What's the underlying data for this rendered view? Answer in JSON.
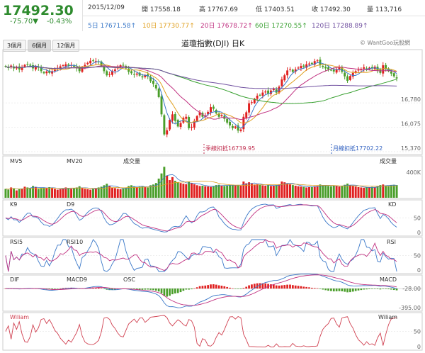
{
  "header": {
    "price": "17492.30",
    "change": "-75.70▼",
    "change_pct": "-0.43%",
    "date": "2015/12/09",
    "open": "開 17558.18",
    "high": "高 17767.69",
    "low": "低 17403.51",
    "close": "收 17492.30",
    "volume": "量 113,716"
  },
  "ma": {
    "ma5": "5日 17671.58↑",
    "ma10": "10日 17730.77↑",
    "ma20": "20日 17678.72↑",
    "ma60": "60日 17270.55↑",
    "ma120": "120日 17288.89↑"
  },
  "tabs": [
    "3個月",
    "6個月",
    "12個月"
  ],
  "title": "道瓊指數(DJI) 日K",
  "brand": "© WantGoo玩股網",
  "colors": {
    "up": "#e02020",
    "down": "#4a9e2a",
    "ma5": "#3a78c8",
    "ma10": "#e0a020",
    "ma20": "#c03080",
    "ma60": "#38a030",
    "ma120": "#7050a0"
  },
  "annotations": {
    "season": "季線扣抵16739.95",
    "month": "月線扣抵17702.22"
  },
  "panels": {
    "vol": {
      "l1": "MV5",
      "l2": "MV20",
      "l3": "成交量",
      "r": "成交量",
      "tick": "400K"
    },
    "kd": {
      "l1": "K9",
      "l2": "D9",
      "r": "KD",
      "t1": "50",
      "t2": "0"
    },
    "rsi": {
      "l1": "RSI5",
      "l2": "RSI10",
      "r": "RSI",
      "t1": "50",
      "t2": "0"
    },
    "macd": {
      "l1": "DIF",
      "l2": "MACD9",
      "l3": "OSC",
      "r": "MACD",
      "t1": "-28.00",
      "t2": "-395.00"
    },
    "wr": {
      "l1": "Wiliam",
      "r": "Wiliam",
      "t1": "50",
      "t2": "0"
    }
  },
  "chart_data": {
    "type": "candlestick",
    "ylim": [
      15370,
      18200
    ],
    "yticks": [
      16780,
      16075,
      15370
    ],
    "closes": [
      17830,
      17790,
      17860,
      17780,
      17810,
      17750,
      17820,
      17880,
      17900,
      17860,
      17780,
      17830,
      17800,
      17700,
      17640,
      17690,
      17650,
      17700,
      17760,
      17790,
      17840,
      17870,
      17900,
      17860,
      17880,
      17830,
      17780,
      17700,
      17820,
      17880,
      17940,
      18000,
      18010,
      17990,
      17960,
      17860,
      17700,
      17580,
      17610,
      17700,
      17750,
      17820,
      17870,
      17880,
      17780,
      17680,
      17640,
      17600,
      17630,
      17570,
      17520,
      17580,
      17550,
      17410,
      17330,
      17200,
      16950,
      16450,
      15870,
      15990,
      16290,
      16450,
      16260,
      16100,
      16200,
      16350,
      16380,
      16050,
      16090,
      16260,
      16400,
      16510,
      16380,
      16420,
      16520,
      16660,
      16610,
      16480,
      16380,
      16430,
      16320,
      16210,
      16130,
      16050,
      16100,
      15980,
      16010,
      16380,
      16510,
      16770,
      16800,
      16900,
      16990,
      17010,
      17080,
      17110,
      17050,
      17140,
      17200,
      17080,
      17250,
      17460,
      17580,
      17720,
      17760,
      17680,
      17750,
      17800,
      17850,
      17830,
      17900,
      17920,
      17910,
      17990,
      18010,
      17870,
      17820,
      17780,
      17750,
      17730,
      17690,
      17760,
      17800,
      17680,
      17550,
      17420,
      17560,
      17650,
      17700,
      17740,
      17760,
      17810,
      17760,
      17800,
      17790,
      17830,
      17720,
      17650,
      17870,
      17750,
      17700,
      17630,
      17550,
      17490
    ],
    "volume": [
      60,
      55,
      70,
      65,
      50,
      58,
      62,
      75,
      70,
      66,
      80,
      72,
      60,
      65,
      70,
      68,
      72,
      66,
      60,
      55,
      58,
      62,
      70,
      66,
      60,
      64,
      70,
      78,
      66,
      60,
      58,
      55,
      60,
      66,
      70,
      75,
      85,
      95,
      80,
      70,
      65,
      60,
      58,
      62,
      70,
      80,
      85,
      78,
      70,
      75,
      80,
      72,
      70,
      85,
      90,
      100,
      130,
      165,
      210,
      150,
      120,
      140,
      115,
      105,
      100,
      95,
      92,
      110,
      100,
      92,
      85,
      80,
      82,
      78,
      76,
      74,
      80,
      86,
      88,
      84,
      80,
      82,
      86,
      88,
      84,
      86,
      82,
      110,
      98,
      105,
      96,
      90,
      92,
      88,
      84,
      82,
      86,
      80,
      82,
      86,
      90,
      110,
      105,
      96,
      92,
      86,
      82,
      78,
      76,
      74,
      70,
      72,
      75,
      78,
      80,
      90,
      86,
      82,
      80,
      78,
      84,
      80,
      76,
      82,
      88,
      96,
      86,
      80,
      76,
      72,
      70,
      68,
      70,
      72,
      74,
      70,
      80,
      86,
      90,
      84,
      80,
      85,
      88,
      86
    ]
  }
}
